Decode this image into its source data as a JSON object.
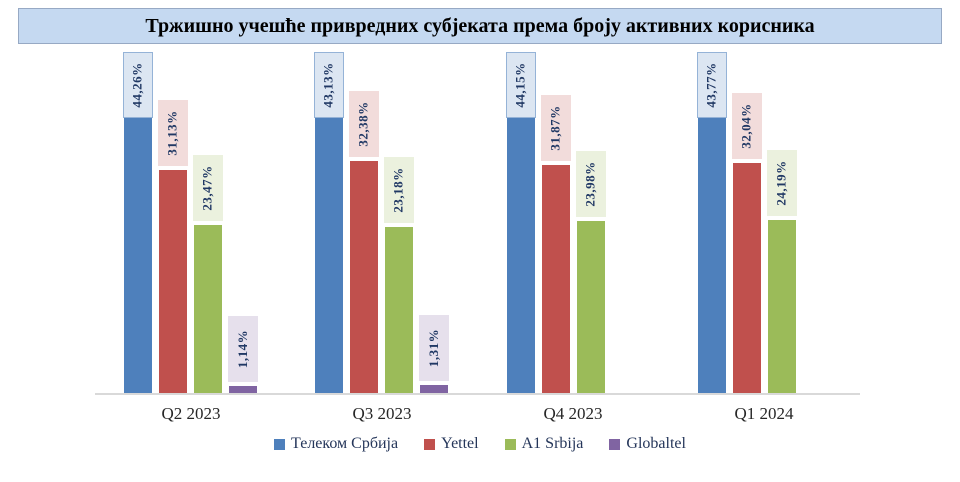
{
  "title": "Тржишно учешће привредних субјеката према броју активних корисника",
  "styles": {
    "title_bg": "#C5D9F1",
    "title_border": "#97A9C4",
    "axis_line_color": "#D9D9D9",
    "category_label_color": "#262626",
    "legend_text_color": "#25365A",
    "data_label_text_color": "#203864"
  },
  "chart_data": {
    "type": "bar",
    "title": "Тржишно учешће привредних субјеката према броју активних корисника",
    "categories": [
      "Q2 2023",
      "Q3 2023",
      "Q4 2023",
      "Q1 2024"
    ],
    "series": [
      {
        "name": "Телеком Србија",
        "color": "#4E80BC",
        "label_bg": "#DCE6F2",
        "label_border": "#95B3D7",
        "values": [
          44.26,
          43.13,
          44.15,
          43.77
        ],
        "labels": [
          "44,26%",
          "43,13%",
          "44,15%",
          "43,77%"
        ]
      },
      {
        "name": "Yettel",
        "color": "#C0504D",
        "label_bg": "#F2DCDB",
        "label_border": null,
        "values": [
          31.13,
          32.38,
          31.87,
          32.04
        ],
        "labels": [
          "31,13%",
          "32,38%",
          "31,87%",
          "32,04%"
        ]
      },
      {
        "name": "A1 Srbija",
        "color": "#9BBB59",
        "label_bg": "#EBF1DE",
        "label_border": null,
        "values": [
          23.47,
          23.18,
          23.98,
          24.19
        ],
        "labels": [
          "23,47%",
          "23,18%",
          "23,98%",
          "24,19%"
        ]
      },
      {
        "name": "Globaltel",
        "color": "#8064A2",
        "label_bg": "#E6E0EC",
        "label_border": null,
        "values": [
          1.14,
          1.31,
          null,
          null
        ],
        "labels": [
          "1,14%",
          "1,31%",
          null,
          null
        ]
      }
    ],
    "value_unit": "%",
    "decimal_separator": ",",
    "ylim": [
      0,
      47
    ],
    "grid": false,
    "y_axis_visible": false,
    "legend_position": "bottom",
    "data_labels": "rotated-90-in-tinted-boxes"
  }
}
